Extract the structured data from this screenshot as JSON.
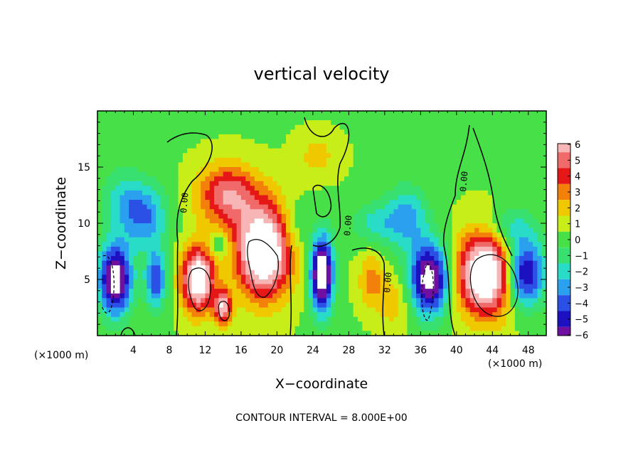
{
  "chart_data": {
    "type": "heatmap",
    "title": "vertical velocity",
    "xlabel": "X−coordinate",
    "ylabel": "Z−coordinate",
    "x_unit_left": "(×1000 m)",
    "x_unit_right": "(×1000 m)",
    "xlim": [
      0,
      50
    ],
    "ylim": [
      0,
      20
    ],
    "x_ticks": [
      4,
      8,
      12,
      16,
      20,
      24,
      28,
      32,
      36,
      40,
      44,
      48
    ],
    "y_ticks": [
      5,
      10,
      15
    ],
    "colorbar": {
      "ticks": [
        "6",
        "5",
        "4",
        "3",
        "2",
        "1",
        "0",
        "−1",
        "−2",
        "−3",
        "−4",
        "−5",
        "−6"
      ],
      "colors": [
        "#f7b5b5",
        "#f06a6a",
        "#e51717",
        "#f2800a",
        "#f0c800",
        "#c8ee1a",
        "#48e048",
        "#38e070",
        "#28dcc8",
        "#2aa0ee",
        "#2a50e6",
        "#1c10c0",
        "#7010a0"
      ],
      "range": [
        -6,
        6
      ]
    },
    "contour_labels": [
      "0.00",
      "0.00",
      "0.00",
      "0.00"
    ],
    "annotation": "CONTOUR INTERVAL = 8.000E+00",
    "blobs": [
      {
        "x": 18.5,
        "z": 7.5,
        "rx": 3.2,
        "rz": 4.2,
        "v": 9
      },
      {
        "x": 14.5,
        "z": 12.5,
        "rx": 3.5,
        "rz": 2.8,
        "v": 5
      },
      {
        "x": 11.2,
        "z": 5.0,
        "rx": 1.9,
        "rz": 3.0,
        "v": 8
      },
      {
        "x": 14.0,
        "z": 2.5,
        "rx": 1.0,
        "rz": 1.6,
        "v": 6
      },
      {
        "x": 43.3,
        "z": 5.5,
        "rx": 3.3,
        "rz": 3.8,
        "v": 9
      },
      {
        "x": 30.5,
        "z": 5.0,
        "rx": 1.5,
        "rz": 2.5,
        "v": 2.5
      },
      {
        "x": 33.0,
        "z": 3.0,
        "rx": 2.0,
        "rz": 2.5,
        "v": 1.8
      },
      {
        "x": 24.5,
        "z": 16.0,
        "rx": 2.5,
        "rz": 2.0,
        "v": 1.5
      },
      {
        "x": 25.0,
        "z": 5.5,
        "rx": 1.3,
        "rz": 3.5,
        "v": -9
      },
      {
        "x": 37.0,
        "z": 5.0,
        "rx": 2.3,
        "rz": 3.3,
        "v": -8
      },
      {
        "x": 47.5,
        "z": 5.5,
        "rx": 2.4,
        "rz": 3.0,
        "v": -7
      },
      {
        "x": 2.0,
        "z": 5.0,
        "rx": 1.9,
        "rz": 3.3,
        "v": -8
      },
      {
        "x": 6.5,
        "z": 5.0,
        "rx": 1.2,
        "rz": 2.6,
        "v": -5
      },
      {
        "x": 5.5,
        "z": 10.5,
        "rx": 2.5,
        "rz": 3.0,
        "v": -3.5
      },
      {
        "x": 3.0,
        "z": 12.0,
        "rx": 2.5,
        "rz": 3.0,
        "v": -2.5
      },
      {
        "x": 31.0,
        "z": 10.0,
        "rx": 3.0,
        "rz": 2.0,
        "v": -2.2
      },
      {
        "x": 34.5,
        "z": 10.5,
        "rx": 2.5,
        "rz": 3.0,
        "v": -3.0
      },
      {
        "x": 46.0,
        "z": 9.5,
        "rx": 3.0,
        "rz": 2.0,
        "v": -2.5
      },
      {
        "x": 22.0,
        "z": 9.5,
        "rx": 1.5,
        "rz": 2.5,
        "v": -1.5
      },
      {
        "x": 13.5,
        "z": 8.0,
        "rx": 1.0,
        "rz": 1.0,
        "v": -2.5
      }
    ]
  }
}
